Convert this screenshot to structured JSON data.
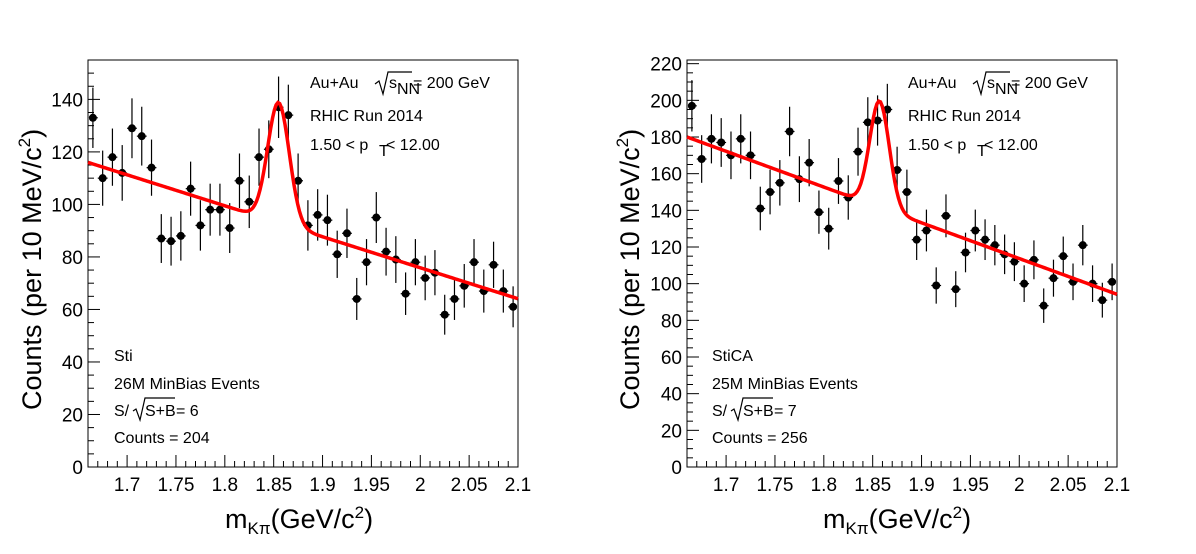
{
  "chart_data": [
    {
      "type": "scatter",
      "xlabel": "m_{Kπ}(GeV/c²)",
      "xlabel_main": "m",
      "xlabel_sub": "Kπ",
      "xlabel_unit": "(GeV/c",
      "xlabel_sup": "2",
      "xlabel_close": ")",
      "ylabel": "Counts (per 10 MeV/c²)",
      "ylabel_main": "Counts (per 10 MeV/c",
      "ylabel_sup": "2",
      "ylabel_close": ")",
      "xlim": [
        1.66,
        2.1
      ],
      "ylim": [
        0,
        155
      ],
      "xticks": [
        1.7,
        1.75,
        1.8,
        1.85,
        1.9,
        1.95,
        2,
        2.05,
        2.1
      ],
      "xtick_labels": [
        "1.7",
        "1.75",
        "1.8",
        "1.85",
        "1.9",
        "1.95",
        "2",
        "2.05",
        "2.1"
      ],
      "yticks": [
        0,
        20,
        40,
        60,
        80,
        100,
        120,
        140
      ],
      "ytick_labels": [
        "0",
        "20",
        "40",
        "60",
        "80",
        "100",
        "120",
        "140"
      ],
      "annotations": {
        "collision": "Au+Au",
        "sqrt_label": "s",
        "sqrt_sub": "NN",
        "energy": " = 200 GeV",
        "run": "RHIC Run 2014",
        "pt_prefix": "1.50 < p",
        "pt_sub": "T",
        "pt_suffix": " < 12.00",
        "tracker": "Sti",
        "tracker_color": "#ff0000",
        "events": "26M MinBias Events",
        "signif_prefix": "S/",
        "signif_root": "S+B",
        "signif_value": " = 6",
        "counts": "Counts = 204"
      },
      "series": [
        {
          "kind": "data_points",
          "color": "#000000",
          "x": [
            1.665,
            1.675,
            1.685,
            1.695,
            1.705,
            1.715,
            1.725,
            1.735,
            1.745,
            1.755,
            1.765,
            1.775,
            1.785,
            1.795,
            1.805,
            1.815,
            1.825,
            1.835,
            1.845,
            1.855,
            1.865,
            1.875,
            1.885,
            1.895,
            1.905,
            1.915,
            1.925,
            1.935,
            1.945,
            1.955,
            1.965,
            1.975,
            1.985,
            1.995,
            2.005,
            2.015,
            2.025,
            2.035,
            2.045,
            2.055,
            2.065,
            2.075,
            2.085,
            2.095
          ],
          "y": [
            133,
            110,
            118,
            112,
            129,
            126,
            114,
            87,
            86,
            88,
            106,
            92,
            98,
            98,
            91,
            109,
            101,
            118,
            121,
            137,
            134,
            109,
            92,
            96,
            94,
            81,
            89,
            64,
            78,
            95,
            82,
            79,
            66,
            78,
            72,
            74,
            58,
            64,
            69,
            78,
            67,
            77,
            67,
            61
          ],
          "err": [
            11.5,
            10.5,
            10.9,
            10.6,
            11.4,
            11.2,
            10.7,
            9.3,
            9.3,
            9.4,
            10.3,
            9.6,
            9.9,
            9.9,
            9.5,
            10.4,
            10.0,
            10.9,
            11.0,
            11.7,
            11.6,
            10.4,
            9.6,
            9.8,
            9.7,
            9.0,
            9.4,
            8.0,
            8.8,
            9.7,
            9.1,
            8.9,
            8.1,
            8.8,
            8.5,
            8.6,
            7.6,
            8.0,
            8.3,
            8.8,
            8.2,
            8.8,
            8.2,
            7.8
          ]
        },
        {
          "kind": "fit",
          "color": "#ff0000",
          "bg_a": 116,
          "bg_b": -118,
          "peak_mean": 1.855,
          "peak_sigma": 0.011,
          "peak_amp": 45.8
        }
      ]
    },
    {
      "type": "scatter",
      "xlabel": "m_{Kπ}(GeV/c²)",
      "xlabel_main": "m",
      "xlabel_sub": "Kπ",
      "xlabel_unit": "(GeV/c",
      "xlabel_sup": "2",
      "xlabel_close": ")",
      "ylabel": "Counts (per 10 MeV/c²)",
      "ylabel_main": "Counts (per 10 MeV/c",
      "ylabel_sup": "2",
      "ylabel_close": ")",
      "xlim": [
        1.66,
        2.1
      ],
      "ylim": [
        0,
        222
      ],
      "xticks": [
        1.7,
        1.75,
        1.8,
        1.85,
        1.9,
        1.95,
        2,
        2.05,
        2.1
      ],
      "xtick_labels": [
        "1.7",
        "1.75",
        "1.8",
        "1.85",
        "1.9",
        "1.95",
        "2",
        "2.05",
        "2.1"
      ],
      "yticks": [
        0,
        20,
        40,
        60,
        80,
        100,
        120,
        140,
        160,
        180,
        200,
        220
      ],
      "ytick_labels": [
        "0",
        "20",
        "40",
        "60",
        "80",
        "100",
        "120",
        "140",
        "160",
        "180",
        "200",
        "220"
      ],
      "annotations": {
        "collision": "Au+Au",
        "sqrt_label": "s",
        "sqrt_sub": "NN",
        "energy": " = 200 GeV",
        "run": "RHIC Run 2014",
        "pt_prefix": "1.50 < p",
        "pt_sub": "T",
        "pt_suffix": " < 12.00",
        "tracker": "StiCA",
        "tracker_color": "#ff0000",
        "events": "25M MinBias Events",
        "signif_prefix": "S/",
        "signif_root": "S+B",
        "signif_value": " = 7",
        "counts": "Counts = 256"
      },
      "series": [
        {
          "kind": "data_points",
          "color": "#000000",
          "x": [
            1.665,
            1.675,
            1.685,
            1.695,
            1.705,
            1.715,
            1.725,
            1.735,
            1.745,
            1.755,
            1.765,
            1.775,
            1.785,
            1.795,
            1.805,
            1.815,
            1.825,
            1.835,
            1.845,
            1.855,
            1.865,
            1.875,
            1.885,
            1.895,
            1.905,
            1.915,
            1.925,
            1.935,
            1.945,
            1.955,
            1.965,
            1.975,
            1.985,
            1.995,
            2.005,
            2.015,
            2.025,
            2.035,
            2.045,
            2.055,
            2.065,
            2.075,
            2.085,
            2.095
          ],
          "y": [
            197,
            168,
            179,
            177,
            170,
            179,
            170,
            141,
            150,
            155,
            183,
            157,
            166,
            139,
            130,
            156,
            147,
            172,
            188,
            189,
            195,
            162,
            150,
            124,
            129,
            99,
            137,
            97,
            117,
            129,
            124,
            121,
            116,
            112,
            100,
            113,
            88,
            103,
            115,
            101,
            121,
            100,
            91,
            101
          ],
          "err": [
            14.0,
            13.0,
            13.4,
            13.3,
            13.0,
            13.4,
            13.0,
            11.9,
            12.2,
            12.4,
            13.5,
            12.5,
            12.9,
            11.8,
            11.4,
            12.5,
            12.1,
            13.1,
            13.7,
            13.7,
            14.0,
            12.7,
            12.2,
            11.1,
            11.4,
            9.9,
            11.7,
            9.8,
            10.8,
            11.4,
            11.1,
            11.0,
            10.8,
            10.6,
            10.0,
            10.6,
            9.4,
            10.1,
            10.7,
            10.0,
            11.0,
            10.0,
            9.5,
            10.0
          ]
        },
        {
          "kind": "fit",
          "color": "#ff0000",
          "bg_a": 180,
          "bg_b": -195,
          "peak_mean": 1.857,
          "peak_sigma": 0.01,
          "peak_amp": 58
        }
      ]
    }
  ]
}
